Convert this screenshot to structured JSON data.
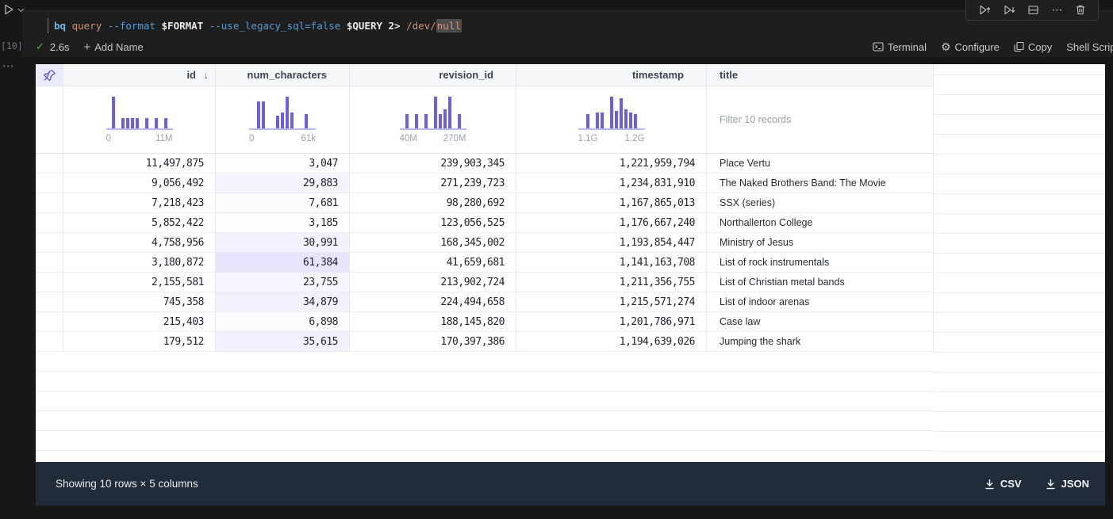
{
  "cell": {
    "execution_count": "[10]",
    "command_tokens": [
      {
        "text": "bq",
        "color": "#6cb8e6",
        "bold": true
      },
      {
        "text": " "
      },
      {
        "text": "query",
        "color": "#ce9178"
      },
      {
        "text": " "
      },
      {
        "text": "--format",
        "color": "#569cd6"
      },
      {
        "text": " "
      },
      {
        "text": "$FORMAT",
        "color": "#e8e8e8",
        "bold": true
      },
      {
        "text": " "
      },
      {
        "text": "--use_legacy_sql=false",
        "color": "#569cd6"
      },
      {
        "text": " "
      },
      {
        "text": "$QUERY",
        "color": "#e8e8e8",
        "bold": true
      },
      {
        "text": " "
      },
      {
        "text": "2>",
        "color": "#e8e8e8",
        "bold": true
      },
      {
        "text": " "
      },
      {
        "text": "/dev/",
        "color": "#ce9178"
      },
      {
        "text": "null",
        "color": "#ce9178",
        "highlight": true
      }
    ],
    "status": {
      "duration": "2.6s",
      "add_name": "Add Name"
    },
    "actions": {
      "terminal": "Terminal",
      "configure": "Configure",
      "copy": "Copy",
      "shell_script": "Shell Script"
    }
  },
  "table": {
    "columns": [
      {
        "label": "id",
        "type": "number",
        "sort": "desc",
        "histogram": {
          "bars": [
            100,
            0,
            33,
            33,
            33,
            33,
            0,
            33,
            0,
            33,
            0,
            33
          ],
          "min": "0",
          "max": "11M"
        }
      },
      {
        "label": "num_characters",
        "type": "number",
        "shaded": true,
        "histogram": {
          "bars": [
            85,
            85,
            0,
            0,
            40,
            50,
            100,
            50,
            0,
            0,
            45
          ],
          "min": "0",
          "max": "61k"
        }
      },
      {
        "label": "revision_id",
        "type": "number",
        "histogram": {
          "bars": [
            45,
            0,
            45,
            0,
            45,
            0,
            100,
            45,
            60,
            100,
            0,
            45
          ],
          "min": "40M",
          "max": "270M"
        }
      },
      {
        "label": "timestamp",
        "type": "number",
        "histogram": {
          "bars": [
            45,
            0,
            50,
            50,
            0,
            100,
            55,
            95,
            60,
            50,
            45
          ],
          "min": "1.1G",
          "max": "1.2G"
        }
      },
      {
        "label": "title",
        "type": "string",
        "filter_placeholder": "Filter 10 records"
      }
    ],
    "rows": [
      [
        "11,497,875",
        "3,047",
        "239,903,345",
        "1,221,959,794",
        "Place Vertu"
      ],
      [
        "9,056,492",
        "29,883",
        "271,239,723",
        "1,234,831,910",
        "The Naked Brothers Band: The Movie"
      ],
      [
        "7,218,423",
        "7,681",
        "98,280,692",
        "1,167,865,013",
        "SSX (series)"
      ],
      [
        "5,852,422",
        "3,185",
        "123,056,525",
        "1,176,667,240",
        "Northallerton College"
      ],
      [
        "4,758,956",
        "30,991",
        "168,345,002",
        "1,193,854,447",
        "Ministry of Jesus"
      ],
      [
        "3,180,872",
        "61,384",
        "41,659,681",
        "1,141,163,708",
        "List of rock instrumentals"
      ],
      [
        "2,155,581",
        "23,755",
        "213,902,724",
        "1,211,356,755",
        "List of Christian metal bands"
      ],
      [
        "745,358",
        "34,879",
        "224,494,658",
        "1,215,571,274",
        "List of indoor arenas"
      ],
      [
        "215,403",
        "6,898",
        "188,145,820",
        "1,201,786,971",
        "Case law"
      ],
      [
        "179,512",
        "35,615",
        "170,397,386",
        "1,194,639,026",
        "Jumping the shark"
      ]
    ]
  },
  "footer": {
    "summary": "Showing 10 rows × 5 columns",
    "csv_label": "CSV",
    "json_label": "JSON"
  },
  "colors": {
    "bar": "#6d5fe0",
    "shade_rgb": "101,96,240",
    "accent_pin": "#5a5ad1",
    "navy": "#212b3a"
  }
}
